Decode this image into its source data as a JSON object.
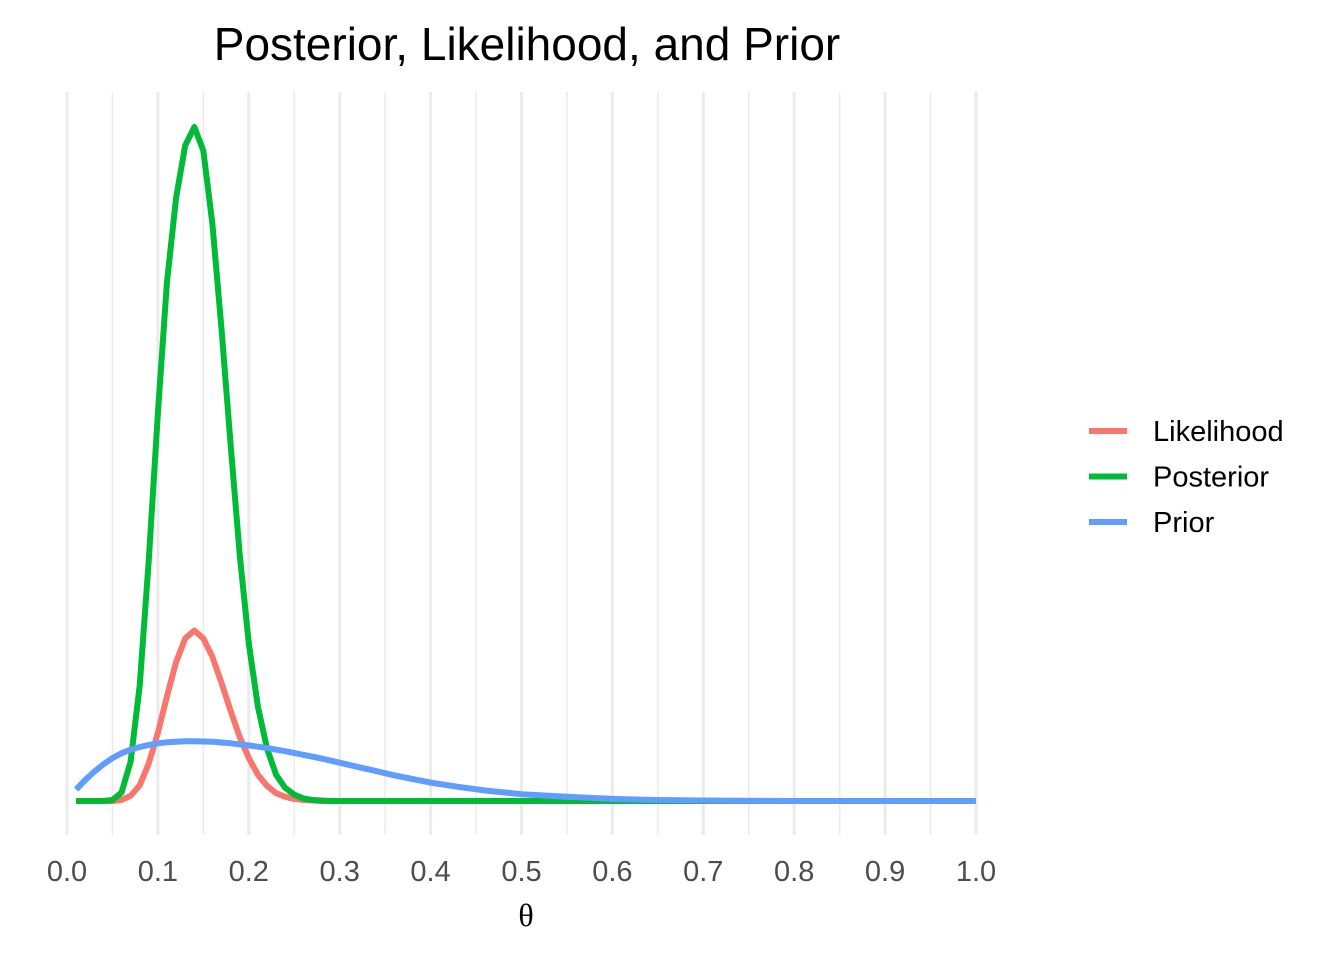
{
  "chart_data": {
    "type": "line",
    "title": "Posterior, Likelihood, and Prior",
    "xlabel": "θ",
    "ylabel": "",
    "xlim": [
      0,
      1
    ],
    "x_ticks": [
      "0.0",
      "0.1",
      "0.2",
      "0.3",
      "0.4",
      "0.5",
      "0.6",
      "0.7",
      "0.8",
      "0.9",
      "1.0"
    ],
    "y_axis_shown": false,
    "grid": "vertical",
    "legend_position": "right",
    "series": [
      {
        "name": "Likelihood",
        "color": "#F8766D",
        "x": [
          0.01,
          0.02,
          0.03,
          0.04,
          0.05,
          0.06,
          0.07,
          0.08,
          0.09,
          0.1,
          0.11,
          0.12,
          0.13,
          0.14,
          0.15,
          0.16,
          0.17,
          0.18,
          0.19,
          0.2,
          0.21,
          0.22,
          0.23,
          0.24,
          0.25,
          0.26,
          0.27,
          0.28,
          0.29,
          0.3,
          0.35,
          0.4,
          0.5,
          0.6,
          0.7,
          0.8,
          0.9,
          1.0
        ],
        "y": [
          0.0,
          0.0,
          0.0,
          0.0,
          0.0,
          0.02,
          0.1,
          0.3,
          0.72,
          1.3,
          2.0,
          2.65,
          3.1,
          3.25,
          3.1,
          2.75,
          2.25,
          1.72,
          1.22,
          0.82,
          0.5,
          0.29,
          0.15,
          0.08,
          0.04,
          0.02,
          0.01,
          0.0,
          0.0,
          0.0,
          0.0,
          0.0,
          0.0,
          0.0,
          0.0,
          0.0,
          0.0,
          0.0
        ]
      },
      {
        "name": "Posterior",
        "color": "#00BA38",
        "x": [
          0.01,
          0.02,
          0.03,
          0.04,
          0.05,
          0.06,
          0.07,
          0.08,
          0.09,
          0.1,
          0.11,
          0.12,
          0.13,
          0.14,
          0.15,
          0.16,
          0.17,
          0.18,
          0.19,
          0.2,
          0.21,
          0.22,
          0.23,
          0.24,
          0.25,
          0.26,
          0.27,
          0.28,
          0.29,
          0.3,
          0.35,
          0.4,
          0.5,
          0.6,
          0.7,
          0.8,
          0.9,
          1.0
        ],
        "y": [
          0.0,
          0.0,
          0.0,
          0.0,
          0.02,
          0.16,
          0.75,
          2.2,
          4.6,
          7.4,
          9.9,
          11.5,
          12.5,
          12.85,
          12.4,
          11.0,
          9.0,
          6.8,
          4.7,
          3.0,
          1.8,
          1.0,
          0.5,
          0.25,
          0.12,
          0.05,
          0.02,
          0.01,
          0.0,
          0.0,
          0.0,
          0.0,
          0.0,
          0.0,
          0.0,
          0.0,
          0.0,
          0.0
        ]
      },
      {
        "name": "Prior",
        "color": "#619CFF",
        "x": [
          0.01,
          0.02,
          0.03,
          0.04,
          0.05,
          0.06,
          0.07,
          0.08,
          0.09,
          0.1,
          0.11,
          0.12,
          0.13,
          0.14,
          0.15,
          0.16,
          0.18,
          0.2,
          0.22,
          0.24,
          0.26,
          0.28,
          0.3,
          0.32,
          0.34,
          0.36,
          0.38,
          0.4,
          0.43,
          0.46,
          0.5,
          0.55,
          0.6,
          0.65,
          0.7,
          0.8,
          0.9,
          1.0
        ],
        "y": [
          0.22,
          0.4,
          0.56,
          0.7,
          0.82,
          0.91,
          0.98,
          1.03,
          1.07,
          1.1,
          1.12,
          1.13,
          1.14,
          1.14,
          1.135,
          1.13,
          1.1,
          1.06,
          1.01,
          0.95,
          0.88,
          0.81,
          0.73,
          0.65,
          0.57,
          0.49,
          0.42,
          0.35,
          0.27,
          0.2,
          0.13,
          0.08,
          0.04,
          0.02,
          0.01,
          0.0,
          0.0,
          0.0
        ]
      }
    ]
  }
}
